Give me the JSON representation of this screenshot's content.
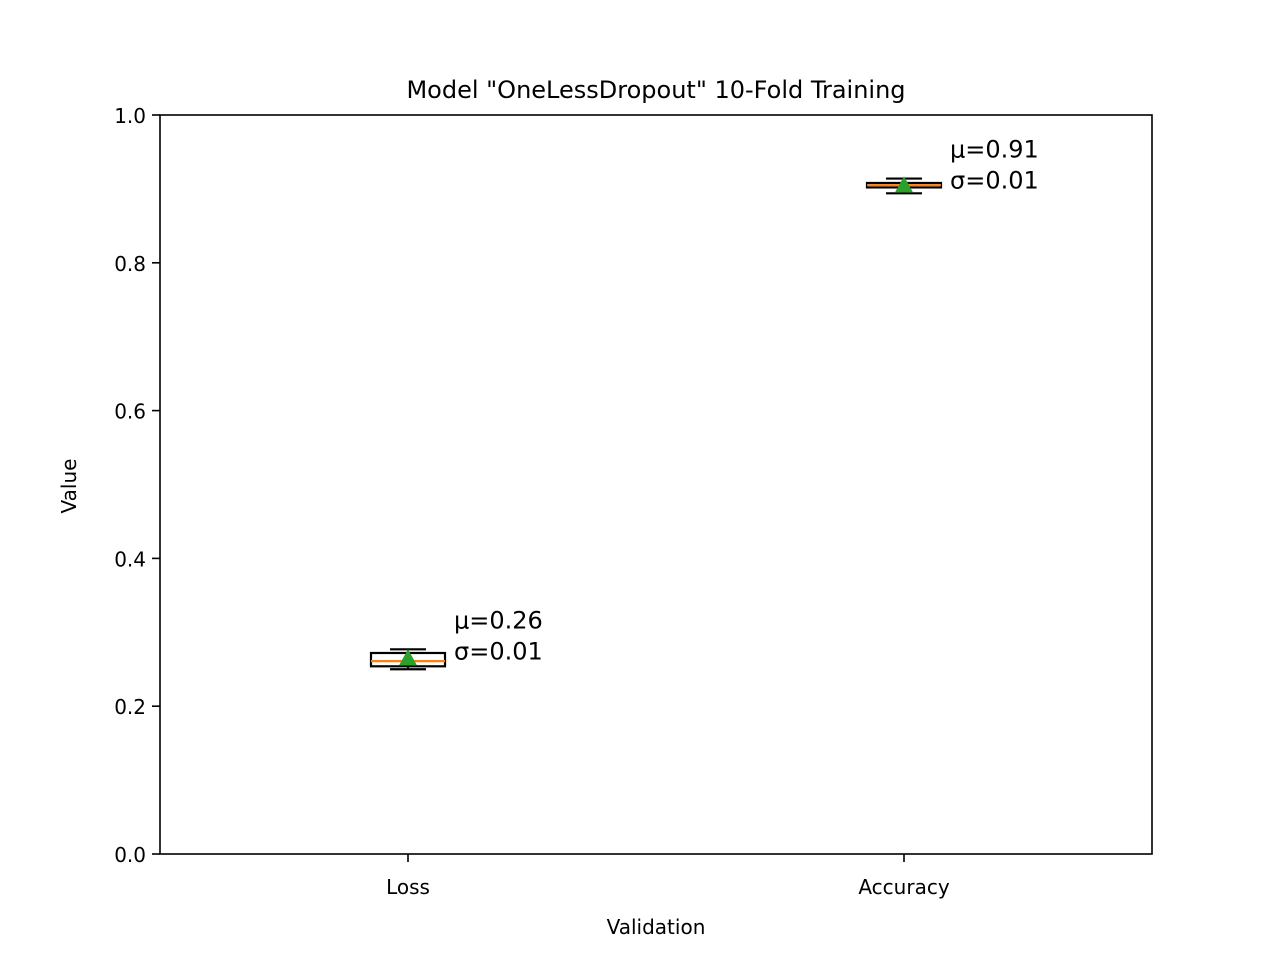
{
  "chart_data": {
    "type": "box",
    "title": "Model \"OneLessDropout\" 10-Fold Training",
    "xlabel": "Validation",
    "ylabel": "Value",
    "ylim": [
      0.0,
      1.0
    ],
    "yticks": [
      "0.0",
      "0.2",
      "0.4",
      "0.6",
      "0.8",
      "1.0"
    ],
    "ytick_values": [
      0.0,
      0.2,
      0.4,
      0.6,
      0.8,
      1.0
    ],
    "categories": [
      "Loss",
      "Accuracy"
    ],
    "boxes": [
      {
        "category": "Loss",
        "whisker_low": 0.25,
        "q1": 0.254,
        "median": 0.261,
        "q3": 0.272,
        "whisker_high": 0.277,
        "mean": 0.265,
        "annotation": [
          "μ=0.26",
          "σ=0.01"
        ]
      },
      {
        "category": "Accuracy",
        "whisker_low": 0.894,
        "q1": 0.902,
        "median": 0.905,
        "q3": 0.908,
        "whisker_high": 0.914,
        "mean": 0.905,
        "annotation": [
          "μ=0.91",
          "σ=0.01"
        ]
      }
    ],
    "grid": false,
    "colors": {
      "median": "#ff7f0e",
      "mean_marker": "#2ca02c",
      "box_edge": "#000000"
    }
  }
}
